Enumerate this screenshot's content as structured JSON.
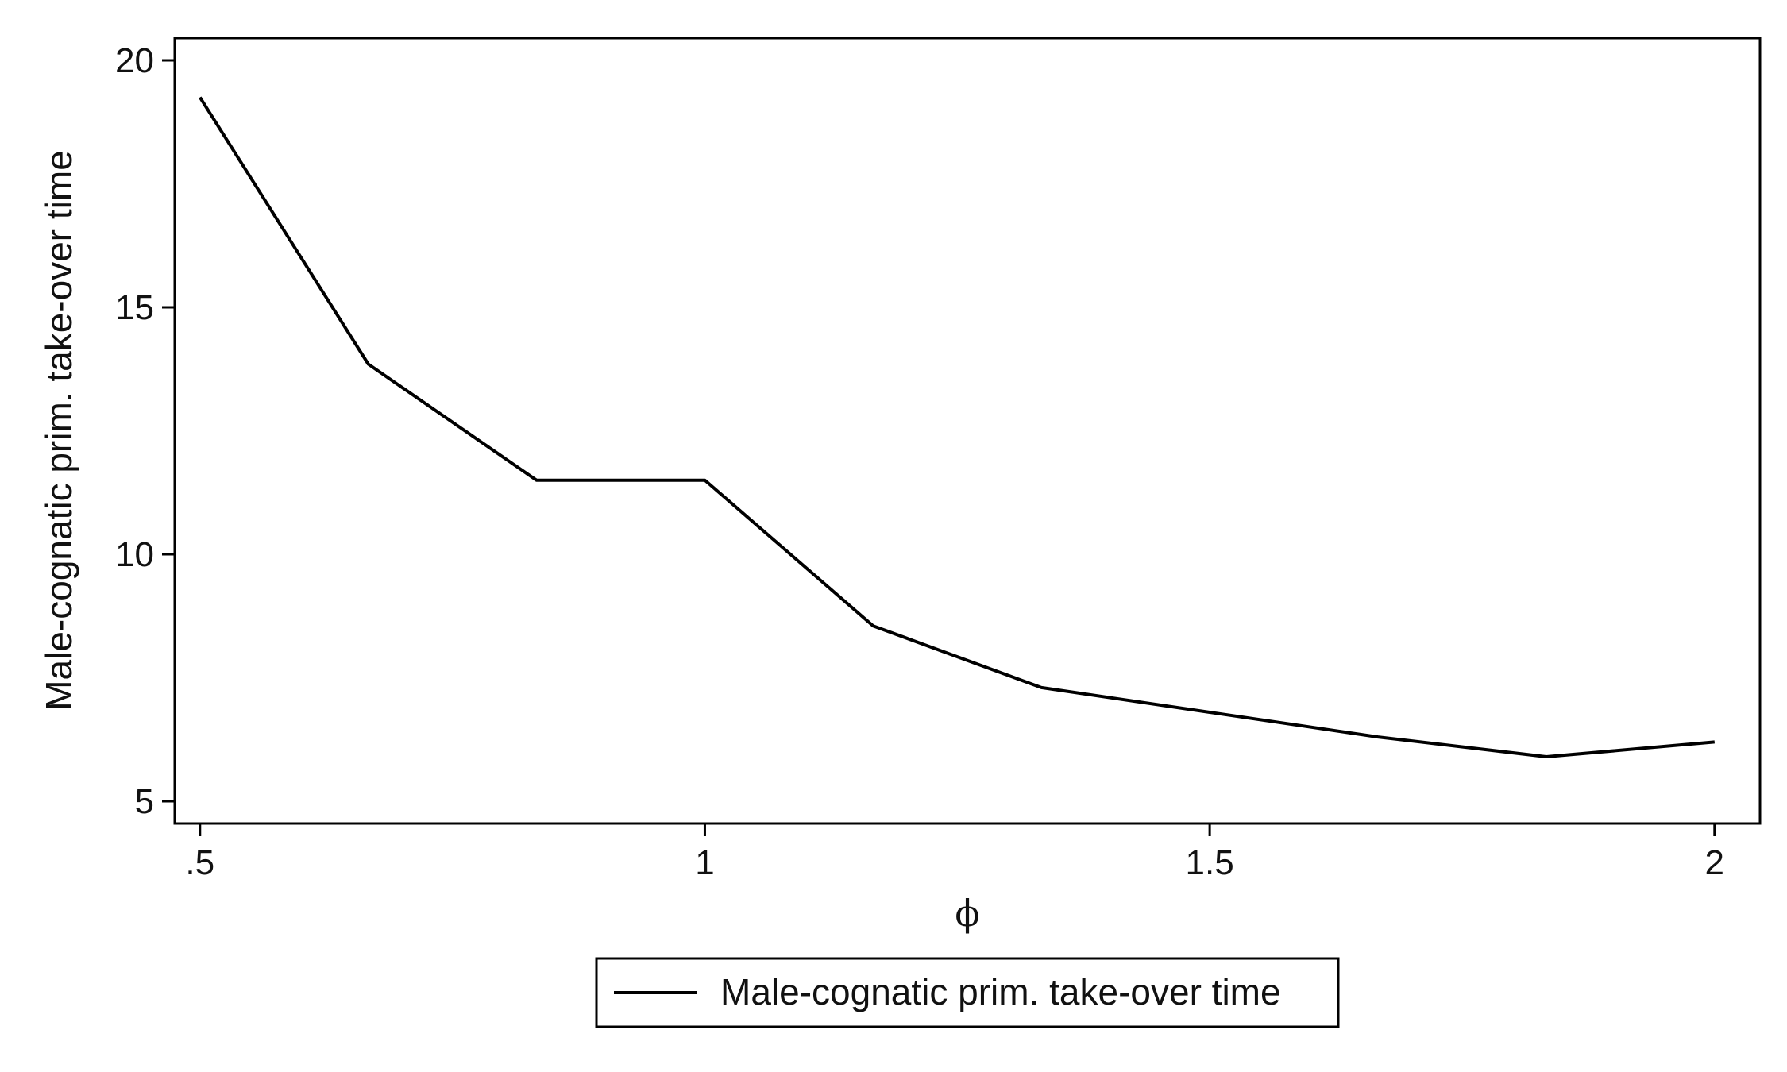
{
  "chart_data": {
    "type": "line",
    "xlabel": "ϕ",
    "ylabel": "Male-cognatic prim. take-over time",
    "xlim": [
      0.475,
      2.045
    ],
    "ylim": [
      4.55,
      20.45
    ],
    "x_ticks": [
      {
        "value": 0.5,
        "label": ".5"
      },
      {
        "value": 1,
        "label": "1"
      },
      {
        "value": 1.5,
        "label": "1.5"
      },
      {
        "value": 2,
        "label": "2"
      }
    ],
    "y_ticks": [
      {
        "value": 5,
        "label": "5"
      },
      {
        "value": 10,
        "label": "10"
      },
      {
        "value": 15,
        "label": "15"
      },
      {
        "value": 20,
        "label": "20"
      }
    ],
    "grid": false,
    "legend_position": "bottom-center",
    "series": [
      {
        "name": "Male-cognatic prim. take-over time",
        "color": "#000000",
        "x": [
          0.5,
          0.6667,
          0.8333,
          1.0,
          1.1667,
          1.3333,
          1.5,
          1.6667,
          1.8333,
          2.0
        ],
        "y": [
          19.25,
          13.85,
          11.5,
          11.5,
          8.55,
          7.3,
          6.8,
          6.3,
          5.9,
          6.2
        ]
      }
    ]
  }
}
